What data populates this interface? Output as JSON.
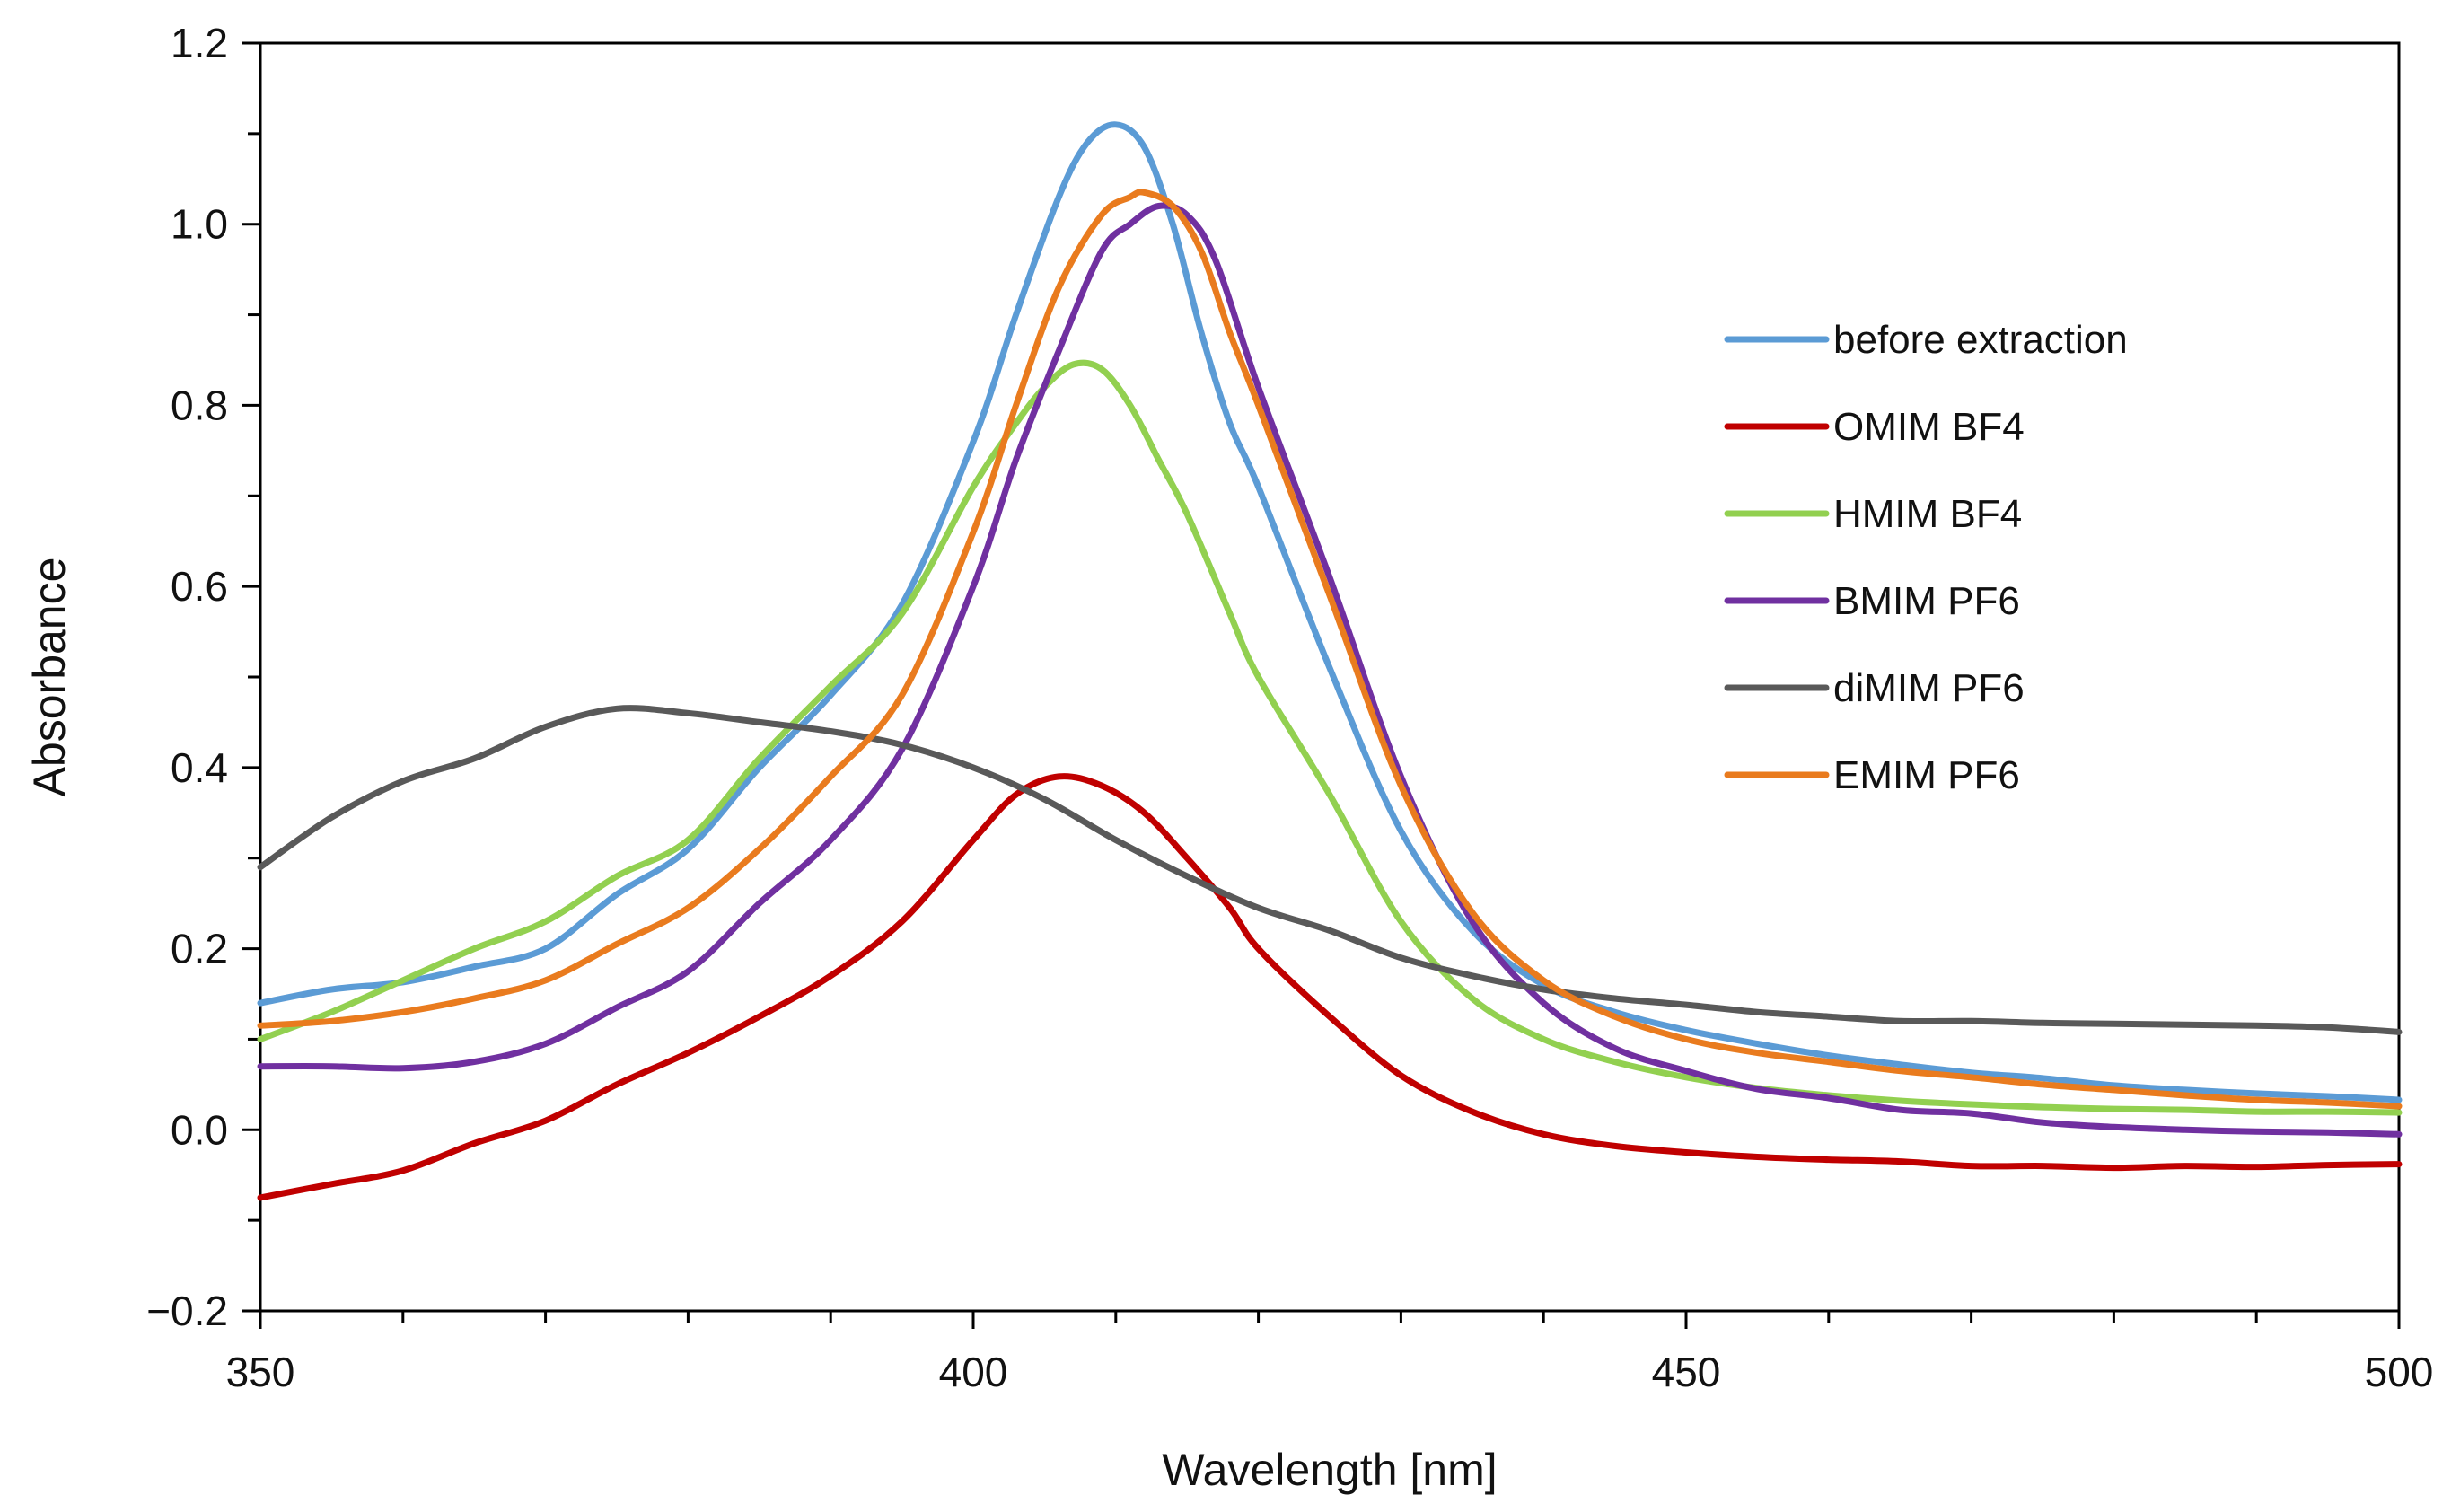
{
  "chart_data": {
    "type": "line",
    "title": "",
    "xlabel": "Wavelength [nm]",
    "ylabel": "Absorbance",
    "xlim": [
      350,
      500
    ],
    "ylim": [
      -0.2,
      1.2
    ],
    "x_ticks": [
      350,
      400,
      450,
      500
    ],
    "x_tick_labels": [
      "350",
      "400",
      "450",
      "500"
    ],
    "x_minor_step": 10,
    "y_ticks": [
      -0.2,
      0.0,
      0.2,
      0.4,
      0.6,
      0.8,
      1.0,
      1.2
    ],
    "y_tick_labels": [
      "−0.2",
      "0.0",
      "0.2",
      "0.4",
      "0.6",
      "0.8",
      "1.0",
      "1.2"
    ],
    "y_minor_step": 0.1,
    "grid": false,
    "legend_position": "right",
    "series": [
      {
        "name": "before extraction",
        "color": "#5b9bd5",
        "x": [
          350,
          355,
          360,
          365,
          370,
          375,
          380,
          385,
          390,
          395,
          400,
          403,
          406,
          408,
          410,
          412,
          414,
          416,
          418,
          420,
          425,
          430,
          435,
          440,
          445,
          450,
          455,
          460,
          465,
          470,
          475,
          480,
          485,
          490,
          495,
          500
        ],
        "y": [
          0.14,
          0.155,
          0.163,
          0.18,
          0.2,
          0.26,
          0.31,
          0.4,
          0.48,
          0.58,
          0.76,
          0.9,
          1.03,
          1.09,
          1.11,
          1.085,
          1.0,
          0.88,
          0.78,
          0.71,
          0.51,
          0.33,
          0.22,
          0.16,
          0.13,
          0.11,
          0.095,
          0.082,
          0.072,
          0.063,
          0.057,
          0.049,
          0.044,
          0.04,
          0.037,
          0.033
        ]
      },
      {
        "name": "OMIM BF4",
        "color": "#c00000",
        "x": [
          350,
          355,
          360,
          365,
          370,
          375,
          380,
          385,
          390,
          395,
          400,
          403,
          406,
          409,
          412,
          415,
          418,
          420,
          425,
          430,
          435,
          440,
          445,
          450,
          455,
          460,
          465,
          470,
          475,
          480,
          485,
          490,
          495,
          500
        ],
        "y": [
          -0.075,
          -0.06,
          -0.045,
          -0.015,
          0.01,
          0.05,
          0.085,
          0.125,
          0.17,
          0.23,
          0.32,
          0.37,
          0.39,
          0.38,
          0.35,
          0.3,
          0.245,
          0.2,
          0.125,
          0.06,
          0.02,
          -0.005,
          -0.018,
          -0.025,
          -0.03,
          -0.033,
          -0.035,
          -0.04,
          -0.04,
          -0.042,
          -0.04,
          -0.041,
          -0.039,
          -0.038
        ]
      },
      {
        "name": "HMIM BF4",
        "color": "#92d050",
        "x": [
          350,
          355,
          360,
          365,
          370,
          375,
          380,
          385,
          390,
          395,
          400,
          403,
          405,
          407,
          409,
          411,
          413,
          415,
          418,
          420,
          425,
          430,
          435,
          440,
          445,
          450,
          455,
          460,
          465,
          470,
          475,
          480,
          485,
          490,
          495,
          500
        ],
        "y": [
          0.1,
          0.13,
          0.165,
          0.2,
          0.23,
          0.28,
          0.32,
          0.41,
          0.49,
          0.57,
          0.71,
          0.78,
          0.82,
          0.845,
          0.84,
          0.8,
          0.74,
          0.68,
          0.57,
          0.5,
          0.37,
          0.23,
          0.145,
          0.1,
          0.075,
          0.058,
          0.046,
          0.038,
          0.032,
          0.028,
          0.025,
          0.023,
          0.022,
          0.02,
          0.02,
          0.019
        ]
      },
      {
        "name": "BMIM PF6",
        "color": "#7030a0",
        "x": [
          350,
          355,
          360,
          365,
          370,
          375,
          380,
          385,
          390,
          395,
          400,
          403,
          406,
          409,
          411,
          413,
          415,
          417,
          420,
          425,
          430,
          435,
          440,
          445,
          450,
          455,
          460,
          465,
          470,
          475,
          480,
          485,
          490,
          495,
          500
        ],
        "y": [
          0.07,
          0.07,
          0.068,
          0.075,
          0.095,
          0.135,
          0.175,
          0.25,
          0.32,
          0.42,
          0.6,
          0.74,
          0.86,
          0.97,
          1.0,
          1.02,
          1.01,
          0.96,
          0.82,
          0.61,
          0.39,
          0.23,
          0.14,
          0.09,
          0.065,
          0.045,
          0.035,
          0.022,
          0.018,
          0.008,
          0.003,
          0.0,
          -0.002,
          -0.003,
          -0.005
        ]
      },
      {
        "name": "diMIM PF6",
        "color": "#595959",
        "x": [
          350,
          355,
          360,
          365,
          370,
          375,
          380,
          385,
          390,
          395,
          400,
          405,
          410,
          415,
          420,
          425,
          430,
          435,
          440,
          445,
          450,
          455,
          460,
          465,
          470,
          475,
          480,
          485,
          490,
          495,
          500
        ],
        "y": [
          0.29,
          0.345,
          0.385,
          0.41,
          0.445,
          0.465,
          0.46,
          0.45,
          0.44,
          0.425,
          0.4,
          0.365,
          0.32,
          0.28,
          0.245,
          0.22,
          0.19,
          0.17,
          0.155,
          0.145,
          0.138,
          0.13,
          0.125,
          0.12,
          0.12,
          0.118,
          0.117,
          0.116,
          0.115,
          0.113,
          0.108
        ]
      },
      {
        "name": "EMIM PF6",
        "color": "#e97b1e",
        "x": [
          350,
          355,
          360,
          365,
          370,
          375,
          380,
          385,
          390,
          395,
          400,
          403,
          406,
          409,
          411,
          412,
          414,
          416,
          418,
          420,
          425,
          430,
          435,
          440,
          445,
          450,
          455,
          460,
          465,
          470,
          475,
          480,
          485,
          490,
          495,
          500
        ],
        "y": [
          0.115,
          0.12,
          0.13,
          0.145,
          0.165,
          0.205,
          0.245,
          0.31,
          0.39,
          0.48,
          0.66,
          0.8,
          0.93,
          1.01,
          1.03,
          1.035,
          1.02,
          0.97,
          0.88,
          0.8,
          0.59,
          0.38,
          0.24,
          0.165,
          0.125,
          0.1,
          0.085,
          0.075,
          0.065,
          0.058,
          0.05,
          0.044,
          0.038,
          0.033,
          0.03,
          0.026
        ]
      }
    ]
  }
}
